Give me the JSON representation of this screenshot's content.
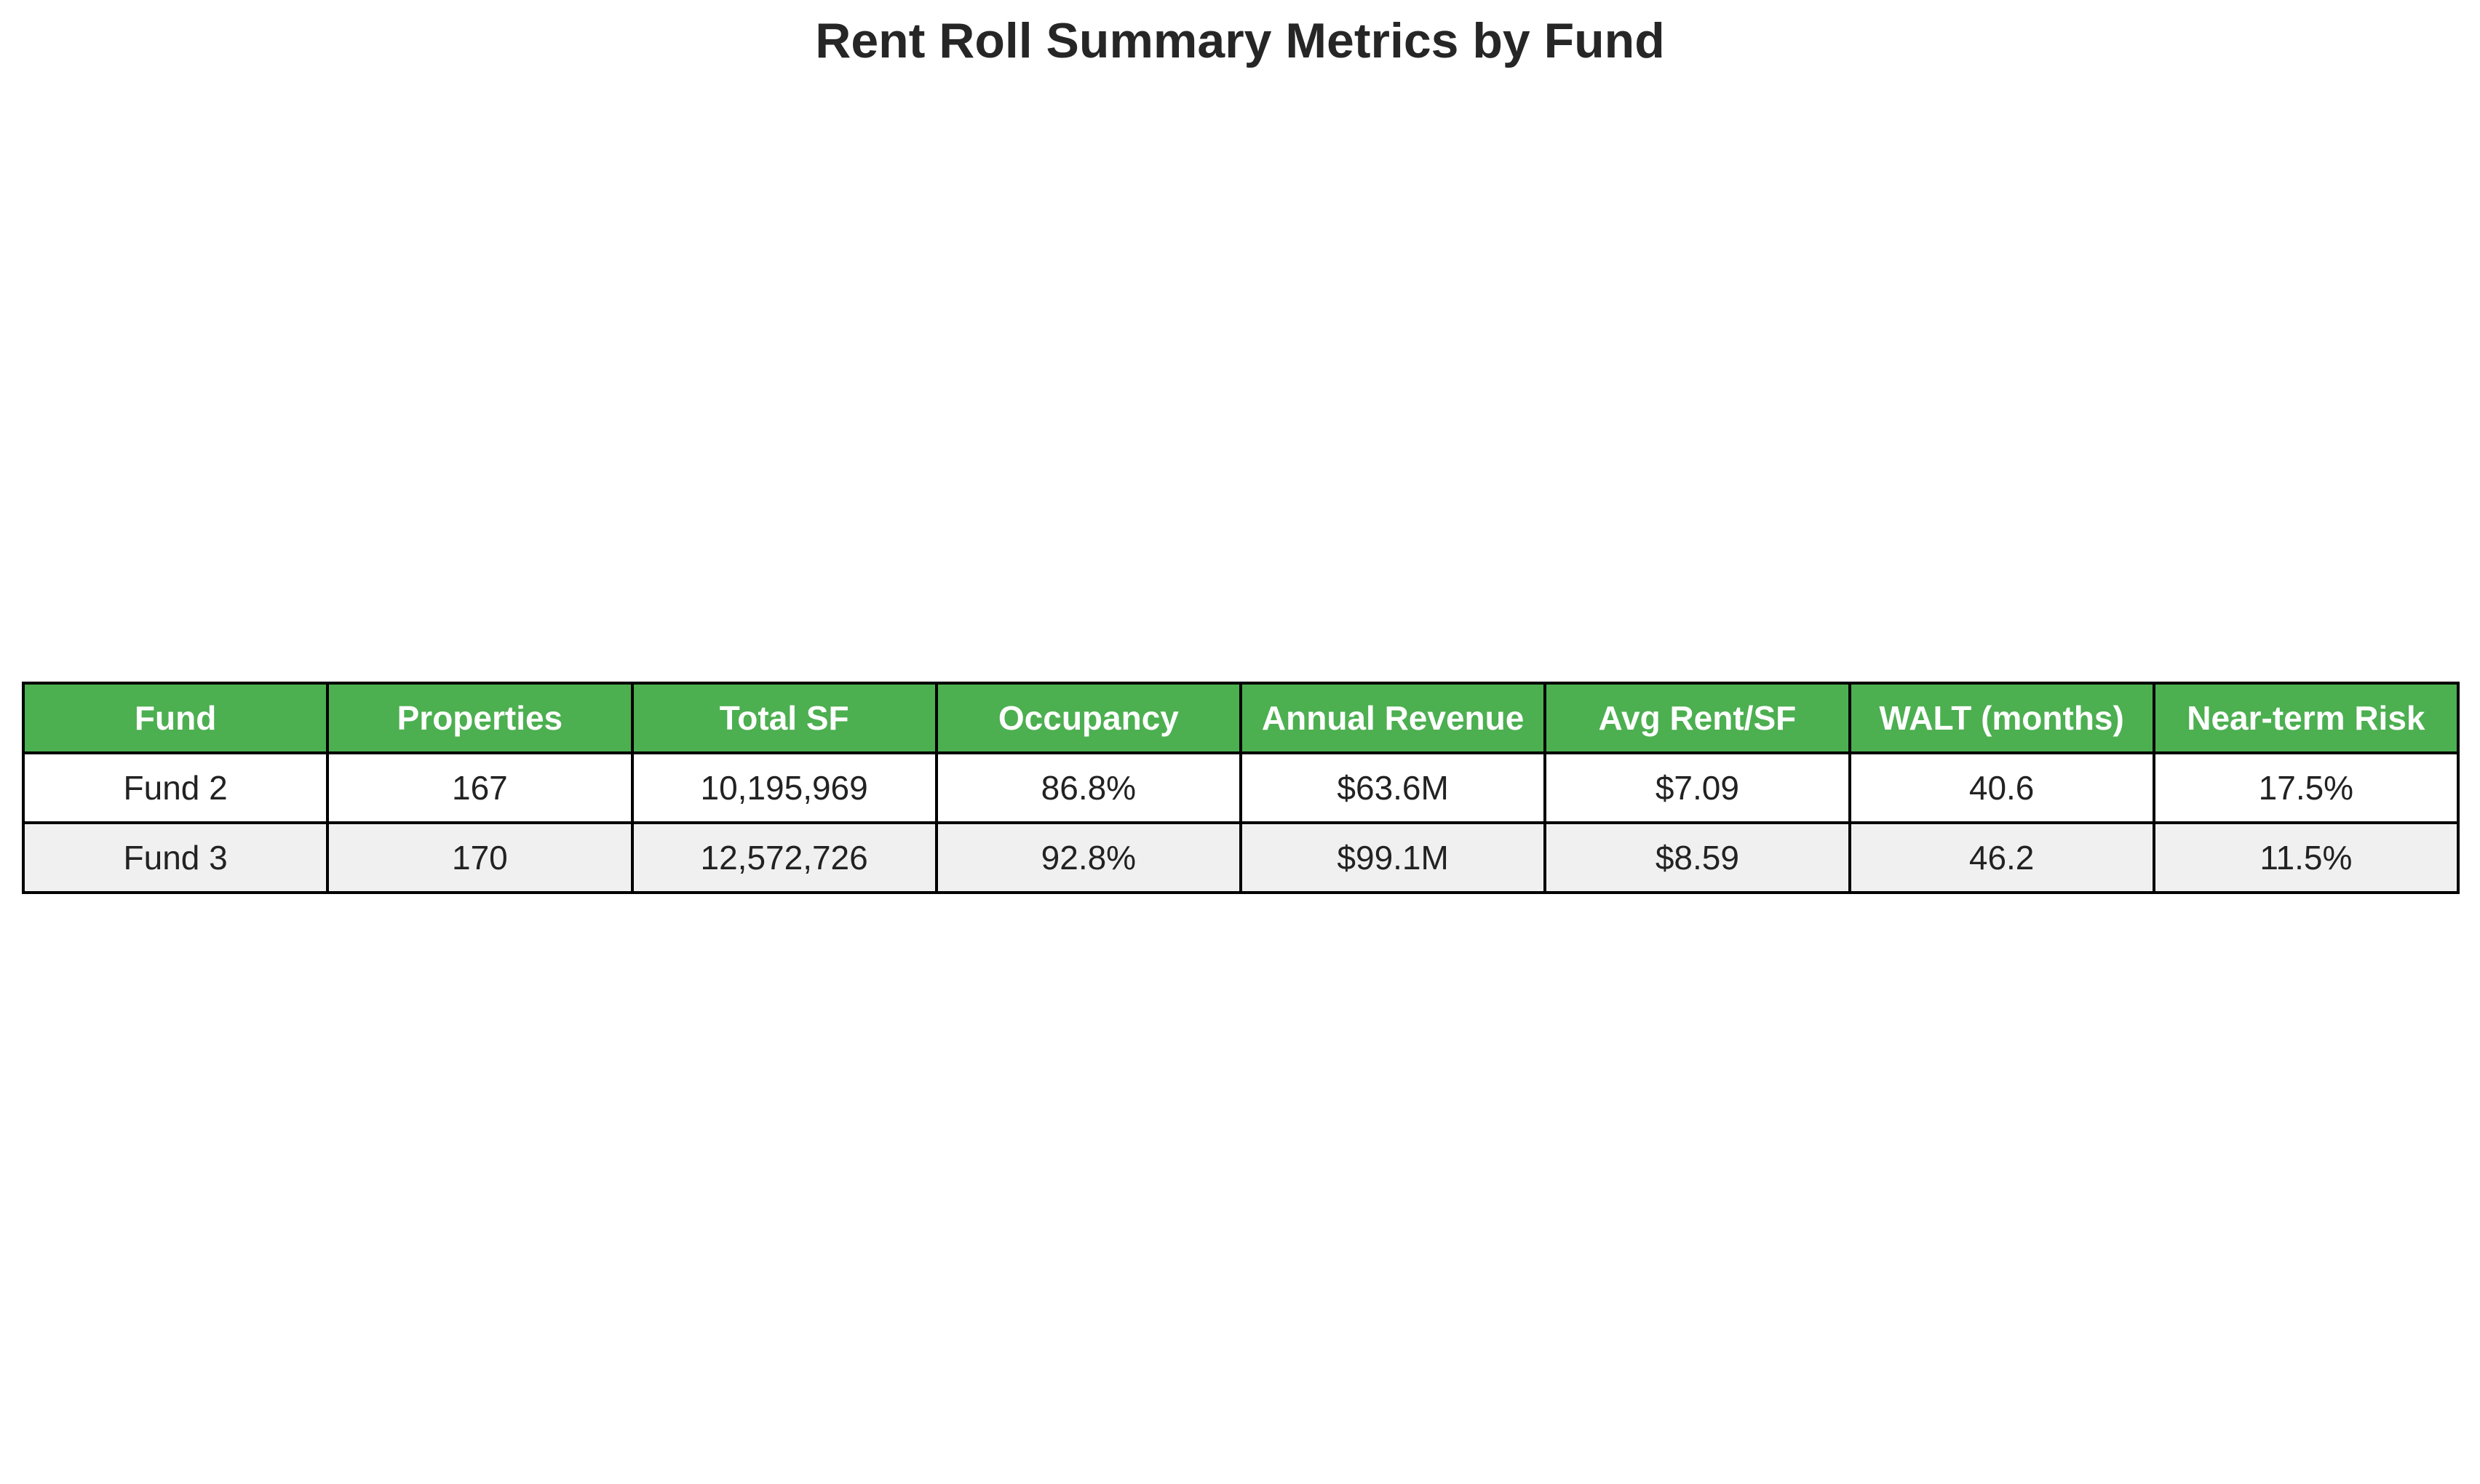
{
  "chart_data": {
    "type": "table",
    "title": "Rent Roll Summary Metrics by Fund",
    "columns": [
      "Fund",
      "Properties",
      "Total SF",
      "Occupancy",
      "Annual Revenue",
      "Avg Rent/SF",
      "WALT (months)",
      "Near-term Risk"
    ],
    "rows": [
      [
        "Fund 2",
        "167",
        "10,195,969",
        "86.8%",
        "$63.6M",
        "$7.09",
        "40.6",
        "17.5%"
      ],
      [
        "Fund 3",
        "170",
        "12,572,726",
        "92.8%",
        "$99.1M",
        "$8.59",
        "46.2",
        "11.5%"
      ]
    ],
    "colors": {
      "header_background": "#4caf50",
      "header_text": "#ffffff",
      "row_alt_background": "#f0f0f0",
      "border": "#000000"
    }
  }
}
